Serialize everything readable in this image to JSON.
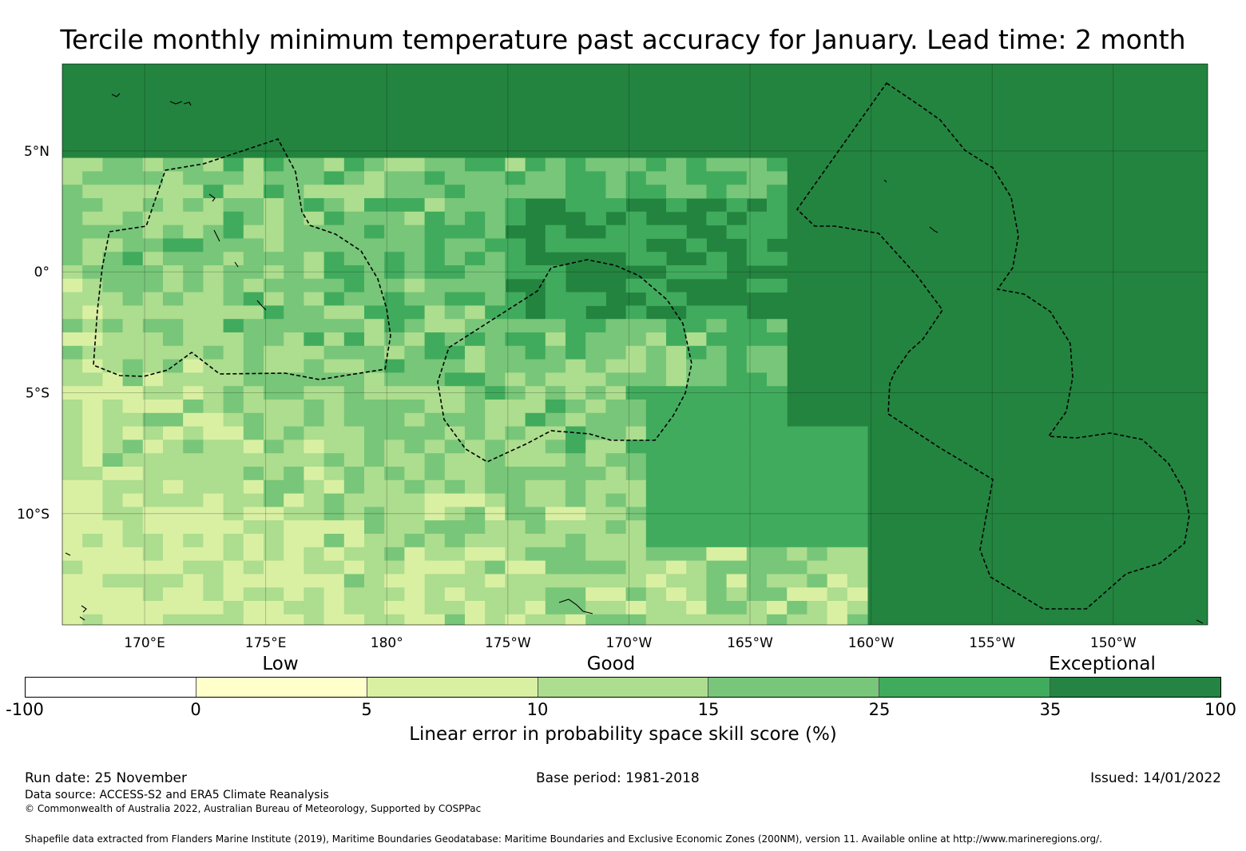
{
  "title": "Tercile monthly minimum temperature past accuracy for January. Lead time: 2 month",
  "map": {
    "lat_labels": [
      "5°N",
      "0°",
      "5°S",
      "10°S"
    ],
    "lon_labels": [
      "170°E",
      "175°E",
      "180°",
      "175°W",
      "170°W",
      "165°W",
      "160°W",
      "155°W",
      "150°W"
    ],
    "lat_values": [
      5,
      0,
      -5,
      -10
    ],
    "lon_values": [
      170,
      175,
      180,
      185,
      190,
      195,
      200,
      205,
      210
    ],
    "extent": {
      "lon_min": 166.6,
      "lon_max": 213.9,
      "lat_min": -14.6,
      "lat_max": 8.6
    },
    "ocean_background_color": "#23843f",
    "coastline_color": "#000000",
    "eez_boundary_style": "dashed",
    "grid_on": true
  },
  "colorbar": {
    "category_labels": [
      "Low",
      "Good",
      "Exceptional"
    ],
    "tick_labels": [
      "-100",
      "0",
      "5",
      "10",
      "15",
      "25",
      "35",
      "100"
    ],
    "colors": [
      "#ffffff",
      "#ffffcc",
      "#d9f0a3",
      "#addd8e",
      "#78c679",
      "#41ab5d",
      "#238443"
    ],
    "label": "Linear error in probability space skill score (%)"
  },
  "footer": {
    "run_date": "Run date: 25 November",
    "base_period": "Base period: 1981-2018",
    "issued": "Issued: 14/01/2022",
    "data_source": "Data source: ACCESS-S2 and ERA5 Climate Reanalysis",
    "copyright": "© Commonwealth of Australia 2022, Australian Bureau of Meteorology, Supported by COSPPac",
    "shapefile": "Shapefile data extracted from Flanders Marine Institute (2019), Maritime Boundaries Geodatabase: Maritime Boundaries and Exclusive Economic Zones (200NM), version 11. Available online at http://www.marineregions.org/."
  }
}
